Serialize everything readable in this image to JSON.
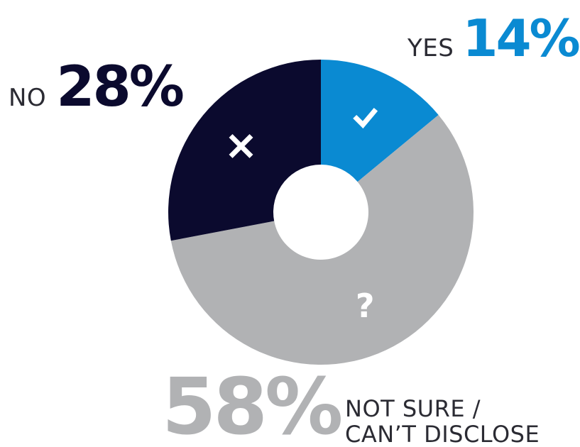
{
  "chart_data": {
    "type": "pie",
    "variant": "donut",
    "legend": "none",
    "title": "",
    "slices": [
      {
        "label": "YES",
        "display": "14%",
        "value": 14,
        "color": "#0a8ad2",
        "icon": "check-icon"
      },
      {
        "label": "NOT SURE / CAN’T DISCLOSE",
        "display": "58%",
        "value": 58,
        "color": "#b1b2b4",
        "icon": "question-icon"
      },
      {
        "label": "NO",
        "display": "28%",
        "value": 28,
        "color": "#0b0a2e",
        "icon": "x-icon"
      }
    ]
  },
  "labels": {
    "yes": {
      "category": "YES",
      "percent": "14%"
    },
    "no": {
      "category": "NO",
      "percent": "28%"
    },
    "not_sure": {
      "percent": "58%",
      "category_line1": "NOT SURE /",
      "category_line2": "CAN’T DISCLOSE"
    }
  },
  "colors": {
    "yes": "#0a8ad2",
    "not_sure": "#b1b2b4",
    "no": "#0b0a2e",
    "category_text": "#2b2b33",
    "icon": "#ffffff"
  }
}
